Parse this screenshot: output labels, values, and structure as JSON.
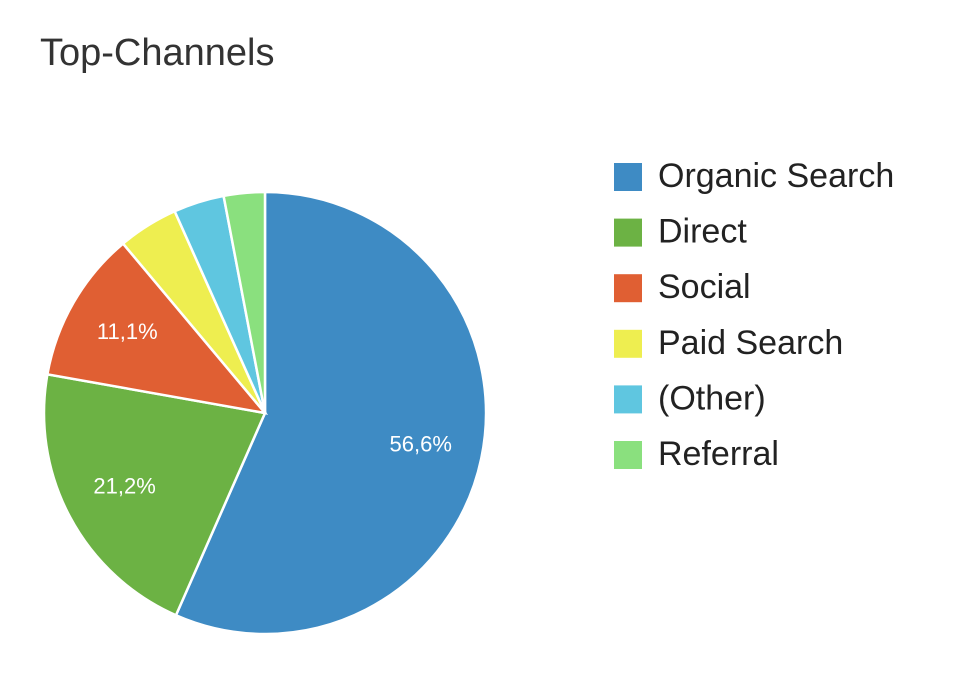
{
  "chart_data": {
    "type": "pie",
    "title": "Top-Channels",
    "categories": [
      "Organic Search",
      "Direct",
      "Social",
      "Paid Search",
      "(Other)",
      "Referral"
    ],
    "values": [
      56.6,
      21.2,
      11.1,
      4.4,
      3.7,
      3.0
    ],
    "value_labels": [
      "56,6%",
      "21,2%",
      "11,1%",
      null,
      null,
      null
    ],
    "colors": [
      "#3e8bc4",
      "#6cb244",
      "#e05f33",
      "#eeee50",
      "#5fc6e0",
      "#8ae07e"
    ],
    "legend": "right"
  }
}
